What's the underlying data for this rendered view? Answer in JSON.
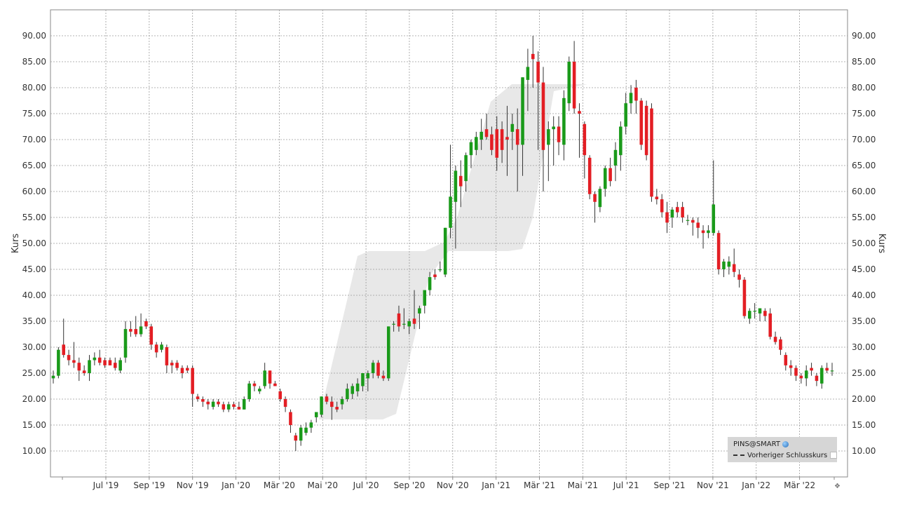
{
  "chart_data": {
    "type": "candlestick",
    "title": "",
    "ylabel_left": "Kurs",
    "ylabel_right": "Kurs",
    "ylim": [
      5,
      95
    ],
    "y_ticks": [
      "10.00",
      "15.00",
      "20.00",
      "25.00",
      "30.00",
      "35.00",
      "40.00",
      "45.00",
      "50.00",
      "55.00",
      "60.00",
      "65.00",
      "70.00",
      "75.00",
      "80.00",
      "85.00",
      "90.00"
    ],
    "x_ticks": [
      "Jul '19",
      "Sep '19",
      "Nov '19",
      "Jan '20",
      "Mär '20",
      "Mai '20",
      "Jul '20",
      "Sep '20",
      "Nov '20",
      "Jan '21",
      "Mär '21",
      "Mai '21",
      "Jul '21",
      "Sep '21",
      "Nov '21",
      "Jan '22",
      "Mär '22"
    ],
    "grid": true,
    "legend_position": "bottom-right",
    "colors": {
      "up": "#1a9a1a",
      "down": "#e31e24",
      "band": "#e6e6e6",
      "grid": "#9a9a9a"
    },
    "candles": [
      [
        24.0,
        25.5,
        23.0,
        24.5
      ],
      [
        24.5,
        30.0,
        24.0,
        29.5
      ],
      [
        30.5,
        35.5,
        28.0,
        28.5
      ],
      [
        28.5,
        29.5,
        26.5,
        27.5
      ],
      [
        27.5,
        31.0,
        26.0,
        27.0
      ],
      [
        27.0,
        28.0,
        23.5,
        25.5
      ],
      [
        25.5,
        26.5,
        24.5,
        25.0
      ],
      [
        25.0,
        28.5,
        23.5,
        27.5
      ],
      [
        27.5,
        29.0,
        26.5,
        28.0
      ],
      [
        28.0,
        29.5,
        26.5,
        27.0
      ],
      [
        27.5,
        28.0,
        26.0,
        26.5
      ],
      [
        27.5,
        28.0,
        26.5,
        26.5
      ],
      [
        27.0,
        28.0,
        25.5,
        26.0
      ],
      [
        25.5,
        28.0,
        25.0,
        27.5
      ],
      [
        28.0,
        35.0,
        27.0,
        33.5
      ],
      [
        33.5,
        35.0,
        32.0,
        33.0
      ],
      [
        33.5,
        36.0,
        32.0,
        32.5
      ],
      [
        32.5,
        36.5,
        32.0,
        34.0
      ],
      [
        35.0,
        35.5,
        33.5,
        34.0
      ],
      [
        34.0,
        34.5,
        29.5,
        30.5
      ],
      [
        30.5,
        31.0,
        28.0,
        29.0
      ],
      [
        29.5,
        31.0,
        29.0,
        30.5
      ],
      [
        30.0,
        30.5,
        25.0,
        26.5
      ],
      [
        27.0,
        27.5,
        25.0,
        26.5
      ],
      [
        27.0,
        27.5,
        25.5,
        26.0
      ],
      [
        26.0,
        26.5,
        24.0,
        25.0
      ],
      [
        26.0,
        26.5,
        25.0,
        25.5
      ],
      [
        26.0,
        26.5,
        18.5,
        21.0
      ],
      [
        20.5,
        21.0,
        19.5,
        20.0
      ],
      [
        20.0,
        20.5,
        18.5,
        19.5
      ],
      [
        19.5,
        20.0,
        18.0,
        19.0
      ],
      [
        18.5,
        20.0,
        18.0,
        19.5
      ],
      [
        19.5,
        20.0,
        18.5,
        19.0
      ],
      [
        19.0,
        19.5,
        17.5,
        18.0
      ],
      [
        18.0,
        19.5,
        17.5,
        19.0
      ],
      [
        19.0,
        19.5,
        18.0,
        18.5
      ],
      [
        18.5,
        19.5,
        18.0,
        18.0
      ],
      [
        18.0,
        20.5,
        18.0,
        20.0
      ],
      [
        20.0,
        23.5,
        19.5,
        23.0
      ],
      [
        23.0,
        23.5,
        21.5,
        22.5
      ],
      [
        21.5,
        22.5,
        21.0,
        22.0
      ],
      [
        22.5,
        27.0,
        22.0,
        25.5
      ],
      [
        25.5,
        25.5,
        22.0,
        23.0
      ],
      [
        23.0,
        23.5,
        22.5,
        22.5
      ],
      [
        21.5,
        22.0,
        19.5,
        20.0
      ],
      [
        20.0,
        20.5,
        17.5,
        18.5
      ],
      [
        17.5,
        18.0,
        13.5,
        15.0
      ],
      [
        13.0,
        13.5,
        10.0,
        12.0
      ],
      [
        12.0,
        15.0,
        11.0,
        14.5
      ],
      [
        13.5,
        15.5,
        13.0,
        14.5
      ],
      [
        14.5,
        16.0,
        13.5,
        15.5
      ],
      [
        16.5,
        17.5,
        15.5,
        17.5
      ],
      [
        17.0,
        20.5,
        16.5,
        20.5
      ],
      [
        20.5,
        21.0,
        19.0,
        19.5
      ],
      [
        19.5,
        20.5,
        16.0,
        18.5
      ],
      [
        18.5,
        19.5,
        17.5,
        18.0
      ],
      [
        19.0,
        20.5,
        18.0,
        20.0
      ],
      [
        20.0,
        23.0,
        19.5,
        22.0
      ],
      [
        21.0,
        23.0,
        20.0,
        22.5
      ],
      [
        21.5,
        24.0,
        20.5,
        23.0
      ],
      [
        22.5,
        25.0,
        21.5,
        25.0
      ],
      [
        24.0,
        25.5,
        21.5,
        25.0
      ],
      [
        25.0,
        27.5,
        24.0,
        27.0
      ],
      [
        27.0,
        27.5,
        24.0,
        24.5
      ],
      [
        24.5,
        25.5,
        23.5,
        24.0
      ],
      [
        24.0,
        34.0,
        23.5,
        34.0
      ],
      [
        34.5,
        35.0,
        33.0,
        34.5
      ],
      [
        36.5,
        38.0,
        33.0,
        34.0
      ],
      [
        34.5,
        37.5,
        33.5,
        34.5
      ],
      [
        34.0,
        35.5,
        32.5,
        35.0
      ],
      [
        35.5,
        41.0,
        33.5,
        34.5
      ],
      [
        36.5,
        38.0,
        33.5,
        37.5
      ],
      [
        38.0,
        40.5,
        36.5,
        41.0
      ],
      [
        41.0,
        44.5,
        40.0,
        43.5
      ],
      [
        44.0,
        45.0,
        43.0,
        43.5
      ],
      [
        45.0,
        46.5,
        44.5,
        45.0
      ],
      [
        44.0,
        53.0,
        43.5,
        53.0
      ],
      [
        53.0,
        69.0,
        51.0,
        59.0
      ],
      [
        58.0,
        65.0,
        49.0,
        64.0
      ],
      [
        63.0,
        66.0,
        57.0,
        61.0
      ],
      [
        62.0,
        67.5,
        60.0,
        67.0
      ],
      [
        67.0,
        70.0,
        64.5,
        69.5
      ],
      [
        68.0,
        71.5,
        67.0,
        70.5
      ],
      [
        70.0,
        74.0,
        68.0,
        71.5
      ],
      [
        72.0,
        75.0,
        70.0,
        70.5
      ],
      [
        71.0,
        72.5,
        67.0,
        68.0
      ],
      [
        72.0,
        74.5,
        64.0,
        66.5
      ],
      [
        72.0,
        73.5,
        65.5,
        68.0
      ],
      [
        70.5,
        76.5,
        63.0,
        70.0
      ],
      [
        71.5,
        75.0,
        68.0,
        73.0
      ],
      [
        72.0,
        76.0,
        60.0,
        69.0
      ],
      [
        69.0,
        82.0,
        63.0,
        82.0
      ],
      [
        81.5,
        87.5,
        75.5,
        84.0
      ],
      [
        86.5,
        90.0,
        80.0,
        85.5
      ],
      [
        85.0,
        87.0,
        68.0,
        81.0
      ],
      [
        81.0,
        84.0,
        60.0,
        68.0
      ],
      [
        69.0,
        73.5,
        62.0,
        72.0
      ],
      [
        72.0,
        74.5,
        65.0,
        72.5
      ],
      [
        72.5,
        74.5,
        67.0,
        69.5
      ],
      [
        69.0,
        79.5,
        66.0,
        78.0
      ],
      [
        77.0,
        86.0,
        75.5,
        85.0
      ],
      [
        85.0,
        89.0,
        75.0,
        76.0
      ],
      [
        75.5,
        77.0,
        66.5,
        75.0
      ],
      [
        73.0,
        73.5,
        62.5,
        67.0
      ],
      [
        66.5,
        67.0,
        58.5,
        59.5
      ],
      [
        59.5,
        60.0,
        54.0,
        58.0
      ],
      [
        57.0,
        61.0,
        56.0,
        60.5
      ],
      [
        60.5,
        65.0,
        59.0,
        64.5
      ],
      [
        64.5,
        66.5,
        61.0,
        62.0
      ],
      [
        65.0,
        69.5,
        62.0,
        68.0
      ],
      [
        67.0,
        73.5,
        64.0,
        72.5
      ],
      [
        72.5,
        79.0,
        71.0,
        77.0
      ],
      [
        77.0,
        80.5,
        75.0,
        79.0
      ],
      [
        80.0,
        81.5,
        75.0,
        77.5
      ],
      [
        77.5,
        78.0,
        68.0,
        69.0
      ],
      [
        76.5,
        77.5,
        66.0,
        67.0
      ],
      [
        76.0,
        77.0,
        58.0,
        59.0
      ],
      [
        59.0,
        60.5,
        57.5,
        58.5
      ],
      [
        58.5,
        59.5,
        55.0,
        56.0
      ],
      [
        56.0,
        58.0,
        52.0,
        54.0
      ],
      [
        55.0,
        57.0,
        53.0,
        56.5
      ],
      [
        57.0,
        58.0,
        55.0,
        56.0
      ],
      [
        57.0,
        58.0,
        54.0,
        55.0
      ],
      [
        54.5,
        55.5,
        53.5,
        54.5
      ],
      [
        54.5,
        55.0,
        51.5,
        54.0
      ],
      [
        54.0,
        55.0,
        51.0,
        53.0
      ],
      [
        52.5,
        53.5,
        49.0,
        52.0
      ],
      [
        52.0,
        53.5,
        51.0,
        52.5
      ],
      [
        52.0,
        66.0,
        51.5,
        57.5
      ],
      [
        52.0,
        52.5,
        44.0,
        45.0
      ],
      [
        45.0,
        47.0,
        43.5,
        46.5
      ],
      [
        45.5,
        47.5,
        44.0,
        46.5
      ],
      [
        46.0,
        49.0,
        43.5,
        44.5
      ],
      [
        44.0,
        45.0,
        41.5,
        43.0
      ],
      [
        43.0,
        43.5,
        35.5,
        36.0
      ],
      [
        35.5,
        37.5,
        34.5,
        37.0
      ],
      [
        37.0,
        38.5,
        35.5,
        37.0
      ],
      [
        36.5,
        37.5,
        35.0,
        37.5
      ],
      [
        37.0,
        37.5,
        35.0,
        36.0
      ],
      [
        36.5,
        37.5,
        31.5,
        32.0
      ],
      [
        32.0,
        33.0,
        30.5,
        31.0
      ],
      [
        31.5,
        32.0,
        28.5,
        29.5
      ],
      [
        28.5,
        29.0,
        25.5,
        26.5
      ],
      [
        26.5,
        27.5,
        24.5,
        26.0
      ],
      [
        26.0,
        26.5,
        23.5,
        24.5
      ],
      [
        24.5,
        25.0,
        23.0,
        24.0
      ],
      [
        24.0,
        26.5,
        22.5,
        25.5
      ],
      [
        26.0,
        27.0,
        24.5,
        25.5
      ],
      [
        24.5,
        25.0,
        22.5,
        23.5
      ],
      [
        23.0,
        26.5,
        22.0,
        26.0
      ],
      [
        26.0,
        27.0,
        25.0,
        25.5
      ],
      [
        25.5,
        27.0,
        24.5,
        25.5
      ]
    ]
  },
  "legend": {
    "symbol": "PINS@SMART",
    "prev_close": "Vorheriger Schlusskurs",
    "symbol_icon": "globe-icon"
  },
  "scroll_arrow": "❖"
}
